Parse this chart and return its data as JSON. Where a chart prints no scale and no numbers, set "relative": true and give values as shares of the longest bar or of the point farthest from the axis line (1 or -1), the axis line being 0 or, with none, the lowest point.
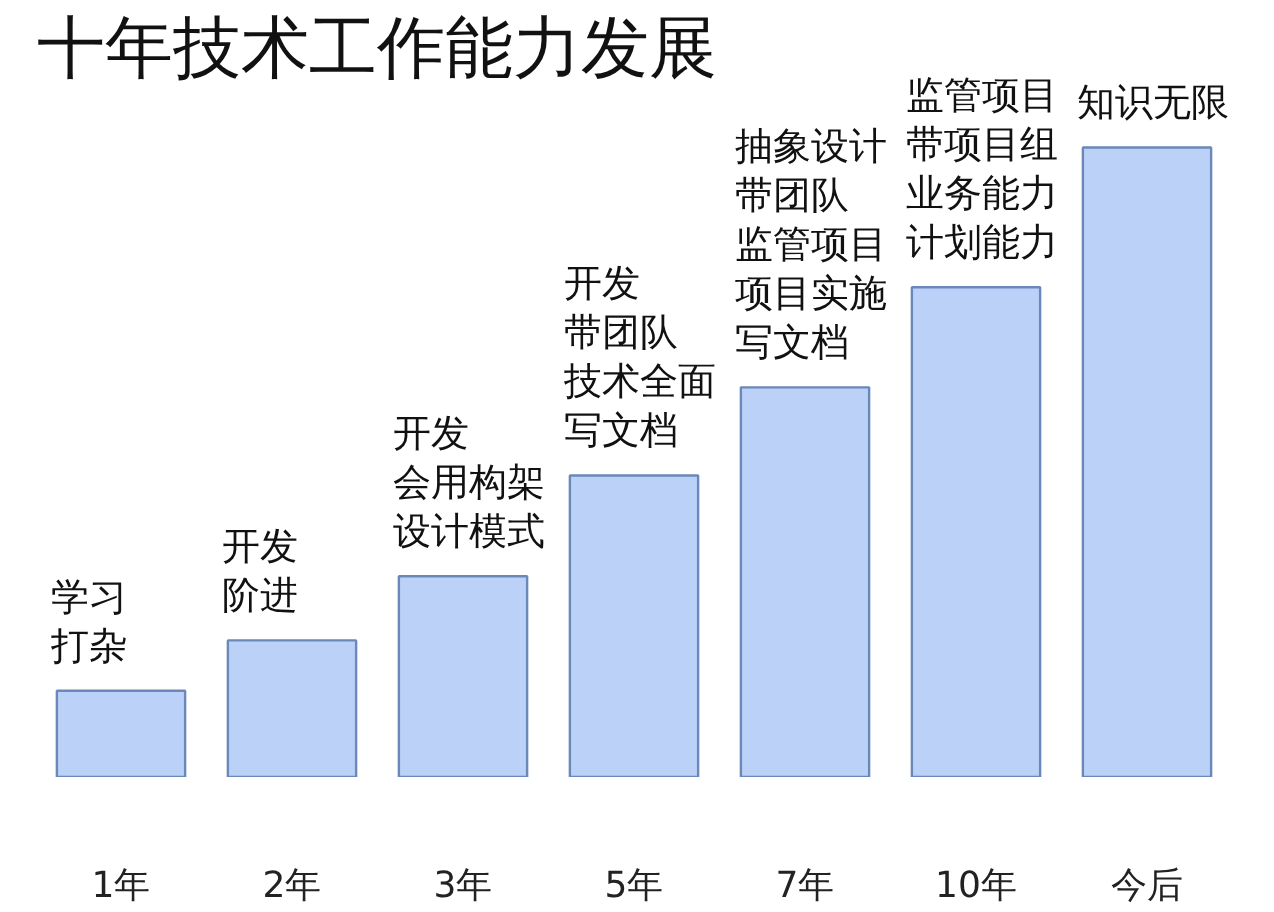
{
  "chart_data": {
    "type": "bar",
    "title": "十年技术工作能力发展",
    "categories": [
      "1年",
      "2年",
      "3年",
      "5年",
      "7年",
      "10年",
      "今后"
    ],
    "values": [
      0.137,
      0.217,
      0.319,
      0.479,
      0.619,
      0.778,
      1
    ],
    "color": "#bcd1f7",
    "relative": true,
    "annotations": [
      "学习",
      {
        "text": "打杂",
        "x": "1年",
        "y": 0.137
      },
      "开发",
      {
        "text": "阶进",
        "x": "2年",
        "y": 0.217
      },
      "开发",
      "会用构架",
      {
        "text": "设计模式",
        "x": "3年",
        "y": 0.319
      },
      "开发",
      "带团队",
      "技术全面",
      {
        "text": "写文档",
        "x": "5年",
        "y": 0.479
      },
      "抽象设计",
      "带团队",
      "监管项目",
      "项目实施",
      {
        "text": "写文档",
        "x": "7年",
        "y": 0.619
      },
      "监管项目",
      "带项目组",
      "业务能力",
      {
        "text": "计划能力",
        "x": "10年",
        "y": 0.778
      },
      {
        "text": "知识无限",
        "x": "今后",
        "y": 1
      }
    ]
  }
}
